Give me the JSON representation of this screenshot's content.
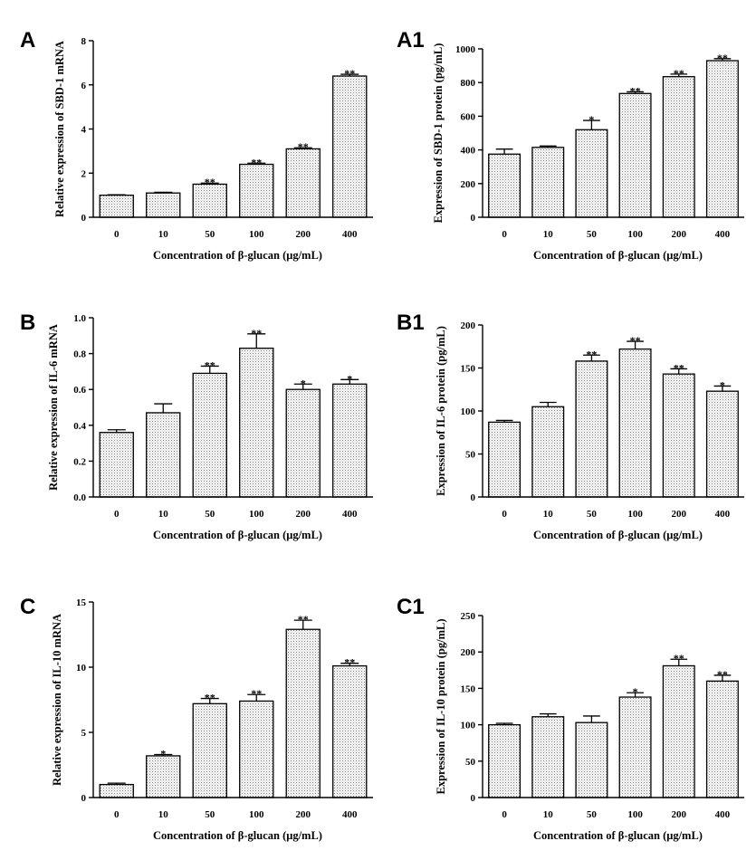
{
  "chart_data": [
    {
      "panel": "A",
      "type": "bar",
      "xlabel": "Concentration of β-glucan (μg/mL)",
      "ylabel": "Relative expression of SBD-1 mRNA",
      "categories": [
        "0",
        "10",
        "50",
        "100",
        "200",
        "400"
      ],
      "values": [
        1.0,
        1.1,
        1.5,
        2.4,
        3.1,
        6.4
      ],
      "errors": [
        0.02,
        0.03,
        0.05,
        0.05,
        0.05,
        0.08
      ],
      "significance": [
        "",
        "",
        "**",
        "**",
        "**",
        "**"
      ],
      "ylim": [
        0,
        8
      ],
      "yticks": [
        0,
        2,
        4,
        6,
        8
      ],
      "ytick_labels": [
        "0",
        "2",
        "4",
        "6",
        "8"
      ]
    },
    {
      "panel": "A1",
      "type": "bar",
      "xlabel": "Concentration of β-glucan (μg/mL)",
      "ylabel": "Expression of SBD-1 protein (pg/mL)",
      "categories": [
        "0",
        "10",
        "50",
        "100",
        "200",
        "400"
      ],
      "values": [
        375,
        415,
        520,
        735,
        835,
        930
      ],
      "errors": [
        30,
        8,
        55,
        10,
        15,
        12
      ],
      "significance": [
        "",
        "",
        "*",
        "**",
        "**",
        "**"
      ],
      "ylim": [
        0,
        1000
      ],
      "yticks": [
        0,
        200,
        400,
        600,
        800,
        1000
      ],
      "ytick_labels": [
        "0",
        "200",
        "400",
        "600",
        "800",
        "1000"
      ]
    },
    {
      "panel": "B",
      "type": "bar",
      "xlabel": "Concentration of β-glucan (μg/mL)",
      "ylabel": "Relative expression of IL-6 mRNA",
      "categories": [
        "0",
        "10",
        "50",
        "100",
        "200",
        "400"
      ],
      "values": [
        0.36,
        0.47,
        0.69,
        0.83,
        0.6,
        0.63
      ],
      "errors": [
        0.015,
        0.05,
        0.04,
        0.08,
        0.03,
        0.025
      ],
      "significance": [
        "",
        "",
        "**",
        "**",
        "*",
        "*"
      ],
      "ylim": [
        0,
        1.0
      ],
      "yticks": [
        0,
        0.2,
        0.4,
        0.6,
        0.8,
        1.0
      ],
      "ytick_labels": [
        "0.0",
        "0.2",
        "0.4",
        "0.6",
        "0.8",
        "1.0"
      ]
    },
    {
      "panel": "B1",
      "type": "bar",
      "xlabel": "Concentration of β-glucan (μg/mL)",
      "ylabel": "Expression of IL-6 protein (pg/mL)",
      "categories": [
        "0",
        "10",
        "50",
        "100",
        "200",
        "400"
      ],
      "values": [
        87,
        105,
        158,
        172,
        143,
        123
      ],
      "errors": [
        2,
        5,
        7,
        9,
        6,
        6
      ],
      "significance": [
        "",
        "",
        "**",
        "**",
        "**",
        "*"
      ],
      "ylim": [
        0,
        200
      ],
      "yticks": [
        0,
        50,
        100,
        150,
        200
      ],
      "ytick_labels": [
        "0",
        "50",
        "100",
        "150",
        "200"
      ]
    },
    {
      "panel": "C",
      "type": "bar",
      "xlabel": "Concentration of β-glucan (μg/mL)",
      "ylabel": "Relative expression of IL-10 mRNA",
      "categories": [
        "0",
        "10",
        "50",
        "100",
        "200",
        "400"
      ],
      "values": [
        1.0,
        3.2,
        7.2,
        7.4,
        12.9,
        10.1
      ],
      "errors": [
        0.1,
        0.1,
        0.4,
        0.5,
        0.7,
        0.2
      ],
      "significance": [
        "",
        "*",
        "**",
        "**",
        "**",
        "**"
      ],
      "ylim": [
        0,
        15
      ],
      "yticks": [
        0,
        5,
        10,
        15
      ],
      "ytick_labels": [
        "0",
        "5",
        "10",
        "15"
      ]
    },
    {
      "panel": "C1",
      "type": "bar",
      "xlabel": "Concentration of β-glucan (μg/mL)",
      "ylabel": "Expression of IL-10 protein (pg/mL)",
      "categories": [
        "0",
        "10",
        "50",
        "100",
        "200",
        "400"
      ],
      "values": [
        100,
        111,
        103,
        138,
        181,
        160
      ],
      "errors": [
        2,
        4,
        9,
        6,
        9,
        8
      ],
      "significance": [
        "",
        "",
        "",
        "*",
        "**",
        "**"
      ],
      "ylim": [
        0,
        250
      ],
      "yticks": [
        0,
        50,
        100,
        150,
        200,
        250
      ],
      "ytick_labels": [
        "0",
        "50",
        "100",
        "150",
        "200",
        "250"
      ]
    }
  ]
}
